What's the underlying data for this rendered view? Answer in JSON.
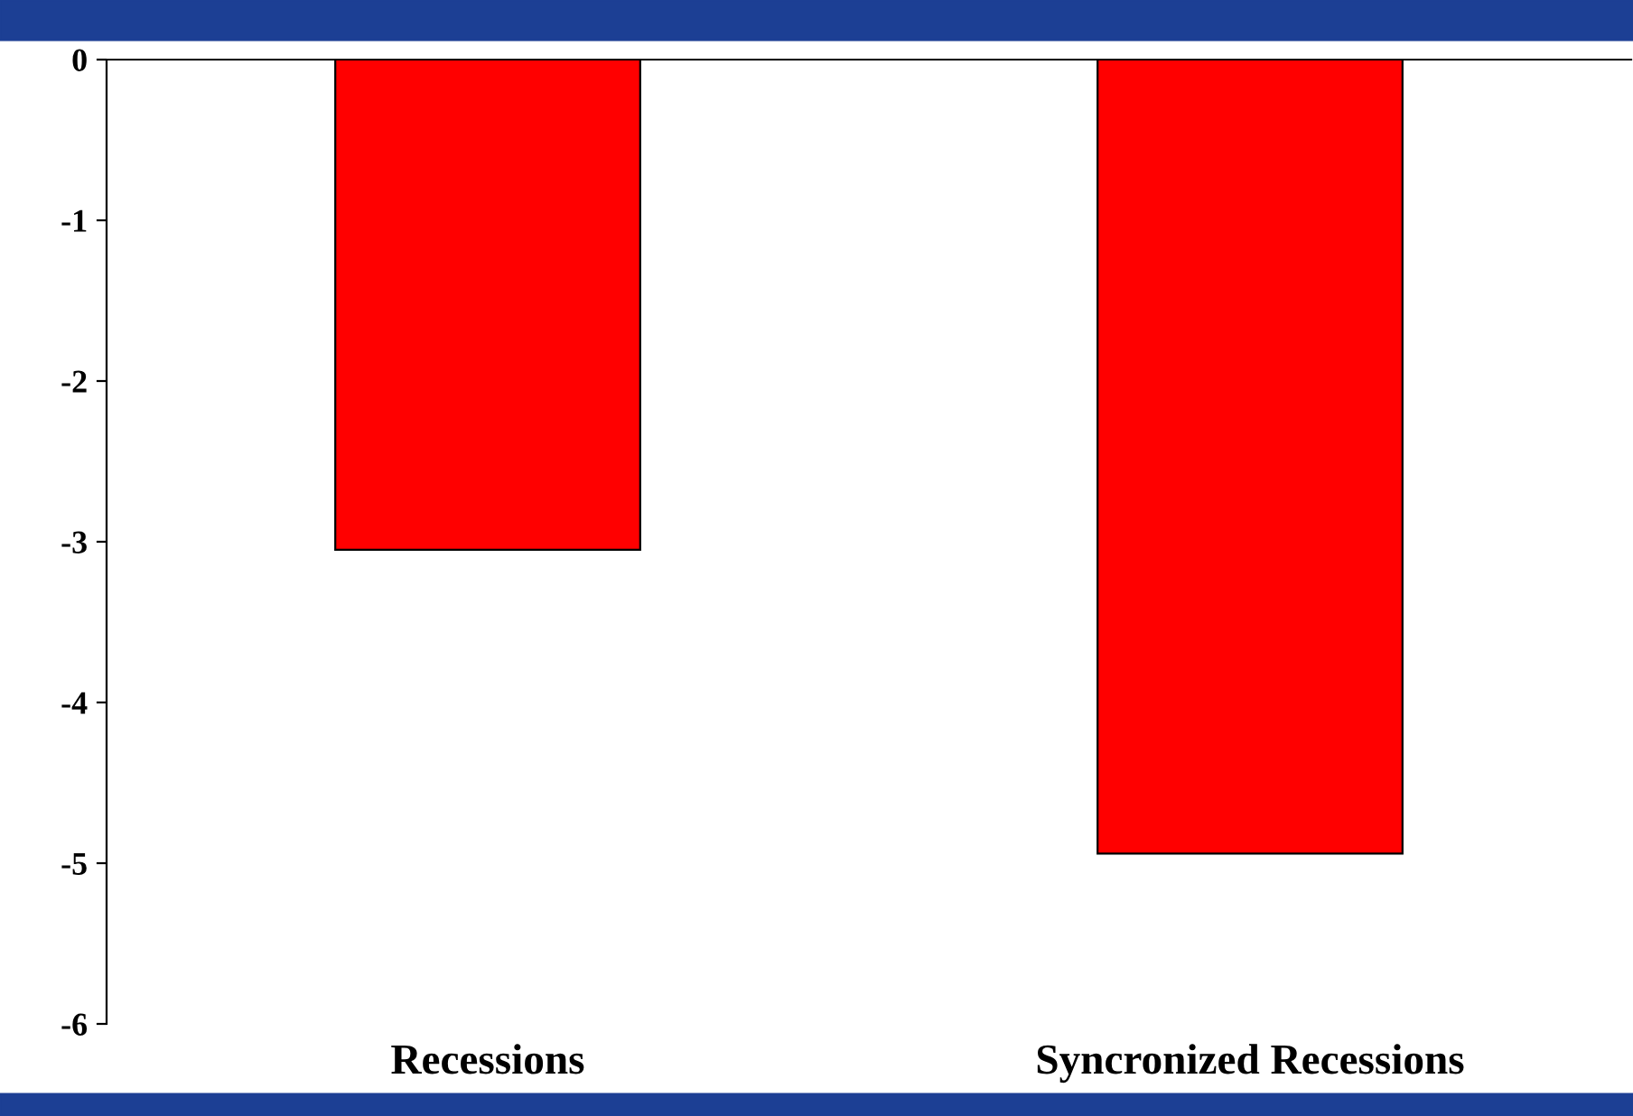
{
  "chart_data": {
    "type": "bar",
    "categories": [
      "Recessions",
      "Syncronized Recessions"
    ],
    "values": [
      -3.05,
      -4.94
    ],
    "color": "#ff0000",
    "ylim": [
      -6,
      0
    ],
    "yticks": [
      -6,
      -5,
      -4,
      -3,
      -2,
      -1,
      0
    ],
    "grid": false
  }
}
